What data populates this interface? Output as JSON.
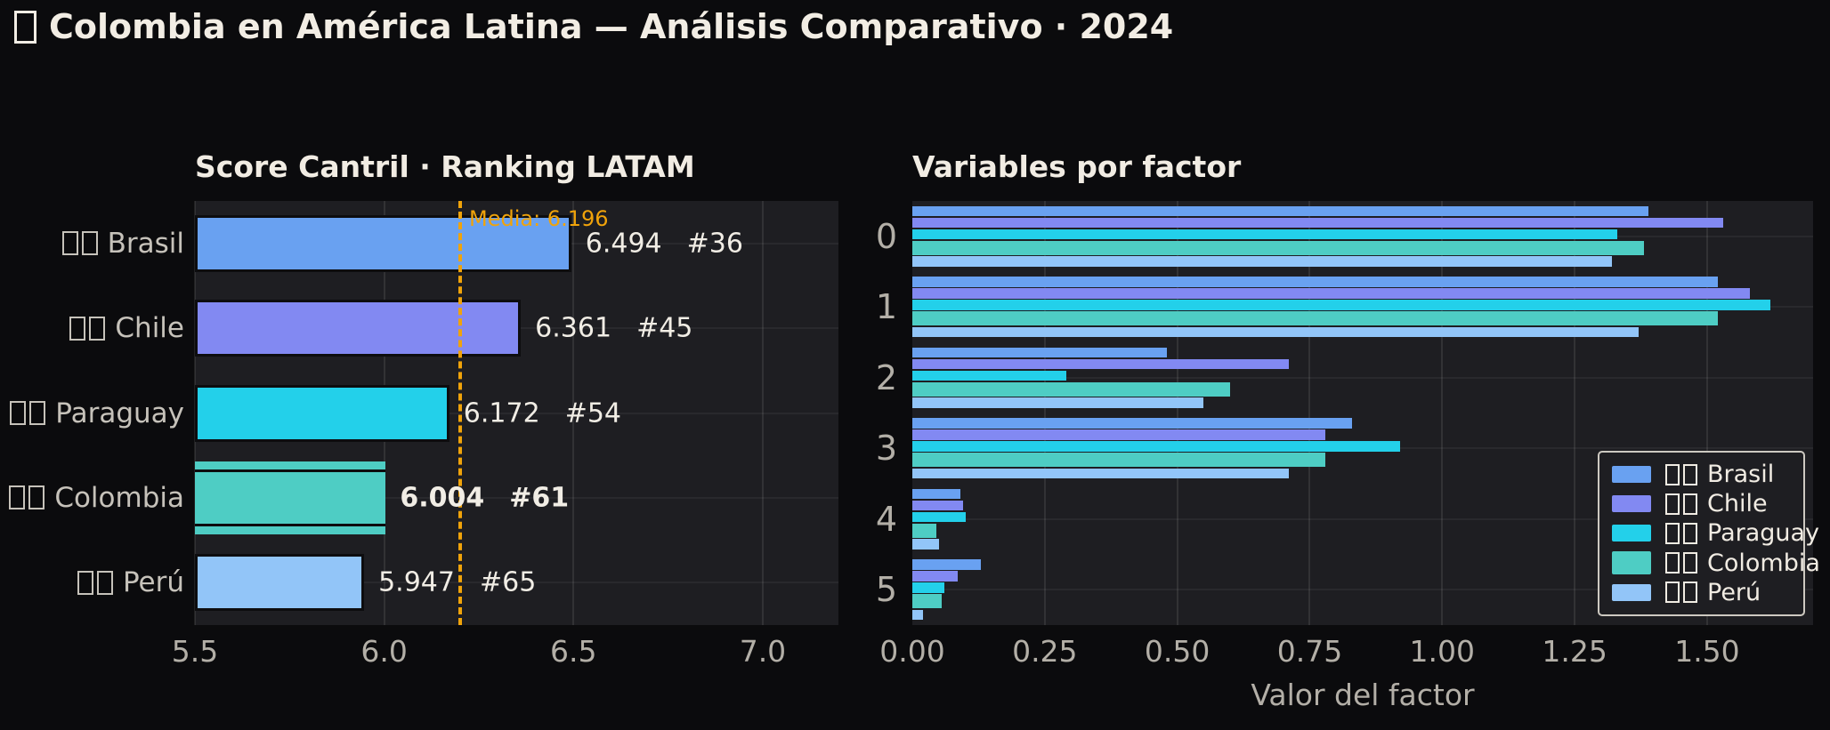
{
  "header": {
    "title": "Colombia en América Latina — Análisis Comparativo · 2024",
    "flag_prefix_rendered_as": "missing-glyph box"
  },
  "colors": {
    "page_bg": "#0b0b0d",
    "plot_bg": "#1e1e22",
    "text": "#f1ece3",
    "tick_text": "#b3afa7",
    "category_text": "#c6c2ba",
    "mean_accent": "#f0a30a",
    "bar_edge": "#0d0d0f",
    "brasil": "#69a1f1",
    "chile": "#8289f2",
    "paraguay": "#23d0ea",
    "colombia": "#4ecdc4",
    "peru": "#92c5f8"
  },
  "chart_data": [
    {
      "type": "bar",
      "orientation": "horizontal",
      "title": "Score Cantril · Ranking LATAM",
      "categories": [
        "Brasil",
        "Chile",
        "Paraguay",
        "Colombia",
        "Perú"
      ],
      "values": [
        6.494,
        6.361,
        6.172,
        6.004,
        5.947
      ],
      "value_labels": [
        "6.494",
        "6.361",
        "6.172",
        "6.004",
        "5.947"
      ],
      "rank_labels": [
        "#36",
        "#45",
        "#54",
        "#61",
        "#65"
      ],
      "bar_colors": [
        "#69a1f1",
        "#8289f2",
        "#23d0ea",
        "#4ecdc4",
        "#92c5f8"
      ],
      "highlight_index": 3,
      "xlim": [
        5.5,
        7.2
      ],
      "xticks": [
        "5.5",
        "6.0",
        "6.5",
        "7.0"
      ],
      "xtick_values": [
        5.5,
        6.0,
        6.5,
        7.0
      ],
      "mean_line": {
        "value": 6.196,
        "label": "Media: 6.196",
        "color": "#f0a30a",
        "style": "dashed"
      },
      "grid": true,
      "xlabel": "",
      "ylabel": ""
    },
    {
      "type": "bar",
      "orientation": "horizontal",
      "title": "Variables por factor",
      "categories": [
        "0",
        "1",
        "2",
        "3",
        "4",
        "5"
      ],
      "series": [
        {
          "name": "Brasil",
          "color": "#69a1f1",
          "values": [
            1.39,
            1.52,
            0.48,
            0.83,
            0.09,
            0.13
          ]
        },
        {
          "name": "Chile",
          "color": "#8289f2",
          "values": [
            1.53,
            1.58,
            0.71,
            0.78,
            0.095,
            0.085
          ]
        },
        {
          "name": "Paraguay",
          "color": "#23d0ea",
          "values": [
            1.33,
            1.62,
            0.29,
            0.92,
            0.1,
            0.06
          ]
        },
        {
          "name": "Colombia",
          "color": "#4ecdc4",
          "values": [
            1.38,
            1.52,
            0.6,
            0.78,
            0.045,
            0.055
          ]
        },
        {
          "name": "Perú",
          "color": "#92c5f8",
          "values": [
            1.32,
            1.37,
            0.55,
            0.71,
            0.05,
            0.02
          ]
        }
      ],
      "highlight_series": "Colombia",
      "xlim": [
        0,
        1.7
      ],
      "xticks": [
        "0.00",
        "0.25",
        "0.50",
        "0.75",
        "1.00",
        "1.25",
        "1.50"
      ],
      "xtick_values": [
        0,
        0.25,
        0.5,
        0.75,
        1.0,
        1.25,
        1.5
      ],
      "xlabel": "Valor del factor",
      "ylabel": "",
      "grid": true,
      "legend": {
        "position": "lower right",
        "entries": [
          "Brasil",
          "Chile",
          "Paraguay",
          "Colombia",
          "Perú"
        ]
      }
    }
  ]
}
